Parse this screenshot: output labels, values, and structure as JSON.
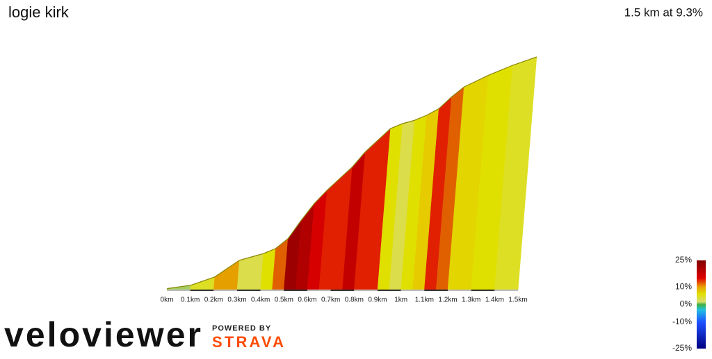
{
  "header": {
    "title": "logie kirk",
    "summary": "1.5 km at 9.3%"
  },
  "chart_data": {
    "type": "profile",
    "x": [
      0,
      0.1,
      0.2,
      0.25,
      0.3,
      0.35,
      0.4,
      0.45,
      0.5,
      0.55,
      0.6,
      0.65,
      0.7,
      0.75,
      0.8,
      0.85,
      0.9,
      0.95,
      1.0,
      1.05,
      1.1,
      1.15,
      1.2,
      1.3,
      1.4,
      1.5
    ],
    "values": [
      1,
      3,
      8,
      13,
      18,
      20,
      22,
      25,
      31,
      42,
      52,
      60,
      67,
      74,
      83,
      90,
      97,
      100,
      102,
      105,
      109,
      116,
      122,
      129,
      135,
      140
    ],
    "xlim": [
      0,
      1.5
    ],
    "ylim": [
      0,
      140
    ],
    "xticks": [
      {
        "value": 0,
        "label": "0km"
      },
      {
        "value": 0.1,
        "label": "0.1km"
      },
      {
        "value": 0.2,
        "label": "0.2km"
      },
      {
        "value": 0.3,
        "label": "0.3km"
      },
      {
        "value": 0.4,
        "label": "0.4km"
      },
      {
        "value": 0.5,
        "label": "0.5km"
      },
      {
        "value": 0.6,
        "label": "0.6km"
      },
      {
        "value": 0.7,
        "label": "0.7km"
      },
      {
        "value": 0.8,
        "label": "0.8km"
      },
      {
        "value": 0.9,
        "label": "0.9km"
      },
      {
        "value": 1.0,
        "label": "1km"
      },
      {
        "value": 1.1,
        "label": "1.1km"
      },
      {
        "value": 1.2,
        "label": "1.2km"
      },
      {
        "value": 1.3,
        "label": "1.3km"
      },
      {
        "value": 1.4,
        "label": "1.4km"
      },
      {
        "value": 1.5,
        "label": "1.5km"
      }
    ],
    "colorbar": {
      "lim": [
        -25,
        25
      ],
      "ticks": [
        {
          "value": 25,
          "label": "25%"
        },
        {
          "value": 10,
          "label": "10%"
        },
        {
          "value": 0,
          "label": "0%"
        },
        {
          "value": -10,
          "label": "-10%"
        },
        {
          "value": -25,
          "label": "-25%"
        }
      ]
    }
  },
  "footer": {
    "brand": "veloviewer",
    "powered": "POWERED BY",
    "strava": "STRAVA"
  }
}
